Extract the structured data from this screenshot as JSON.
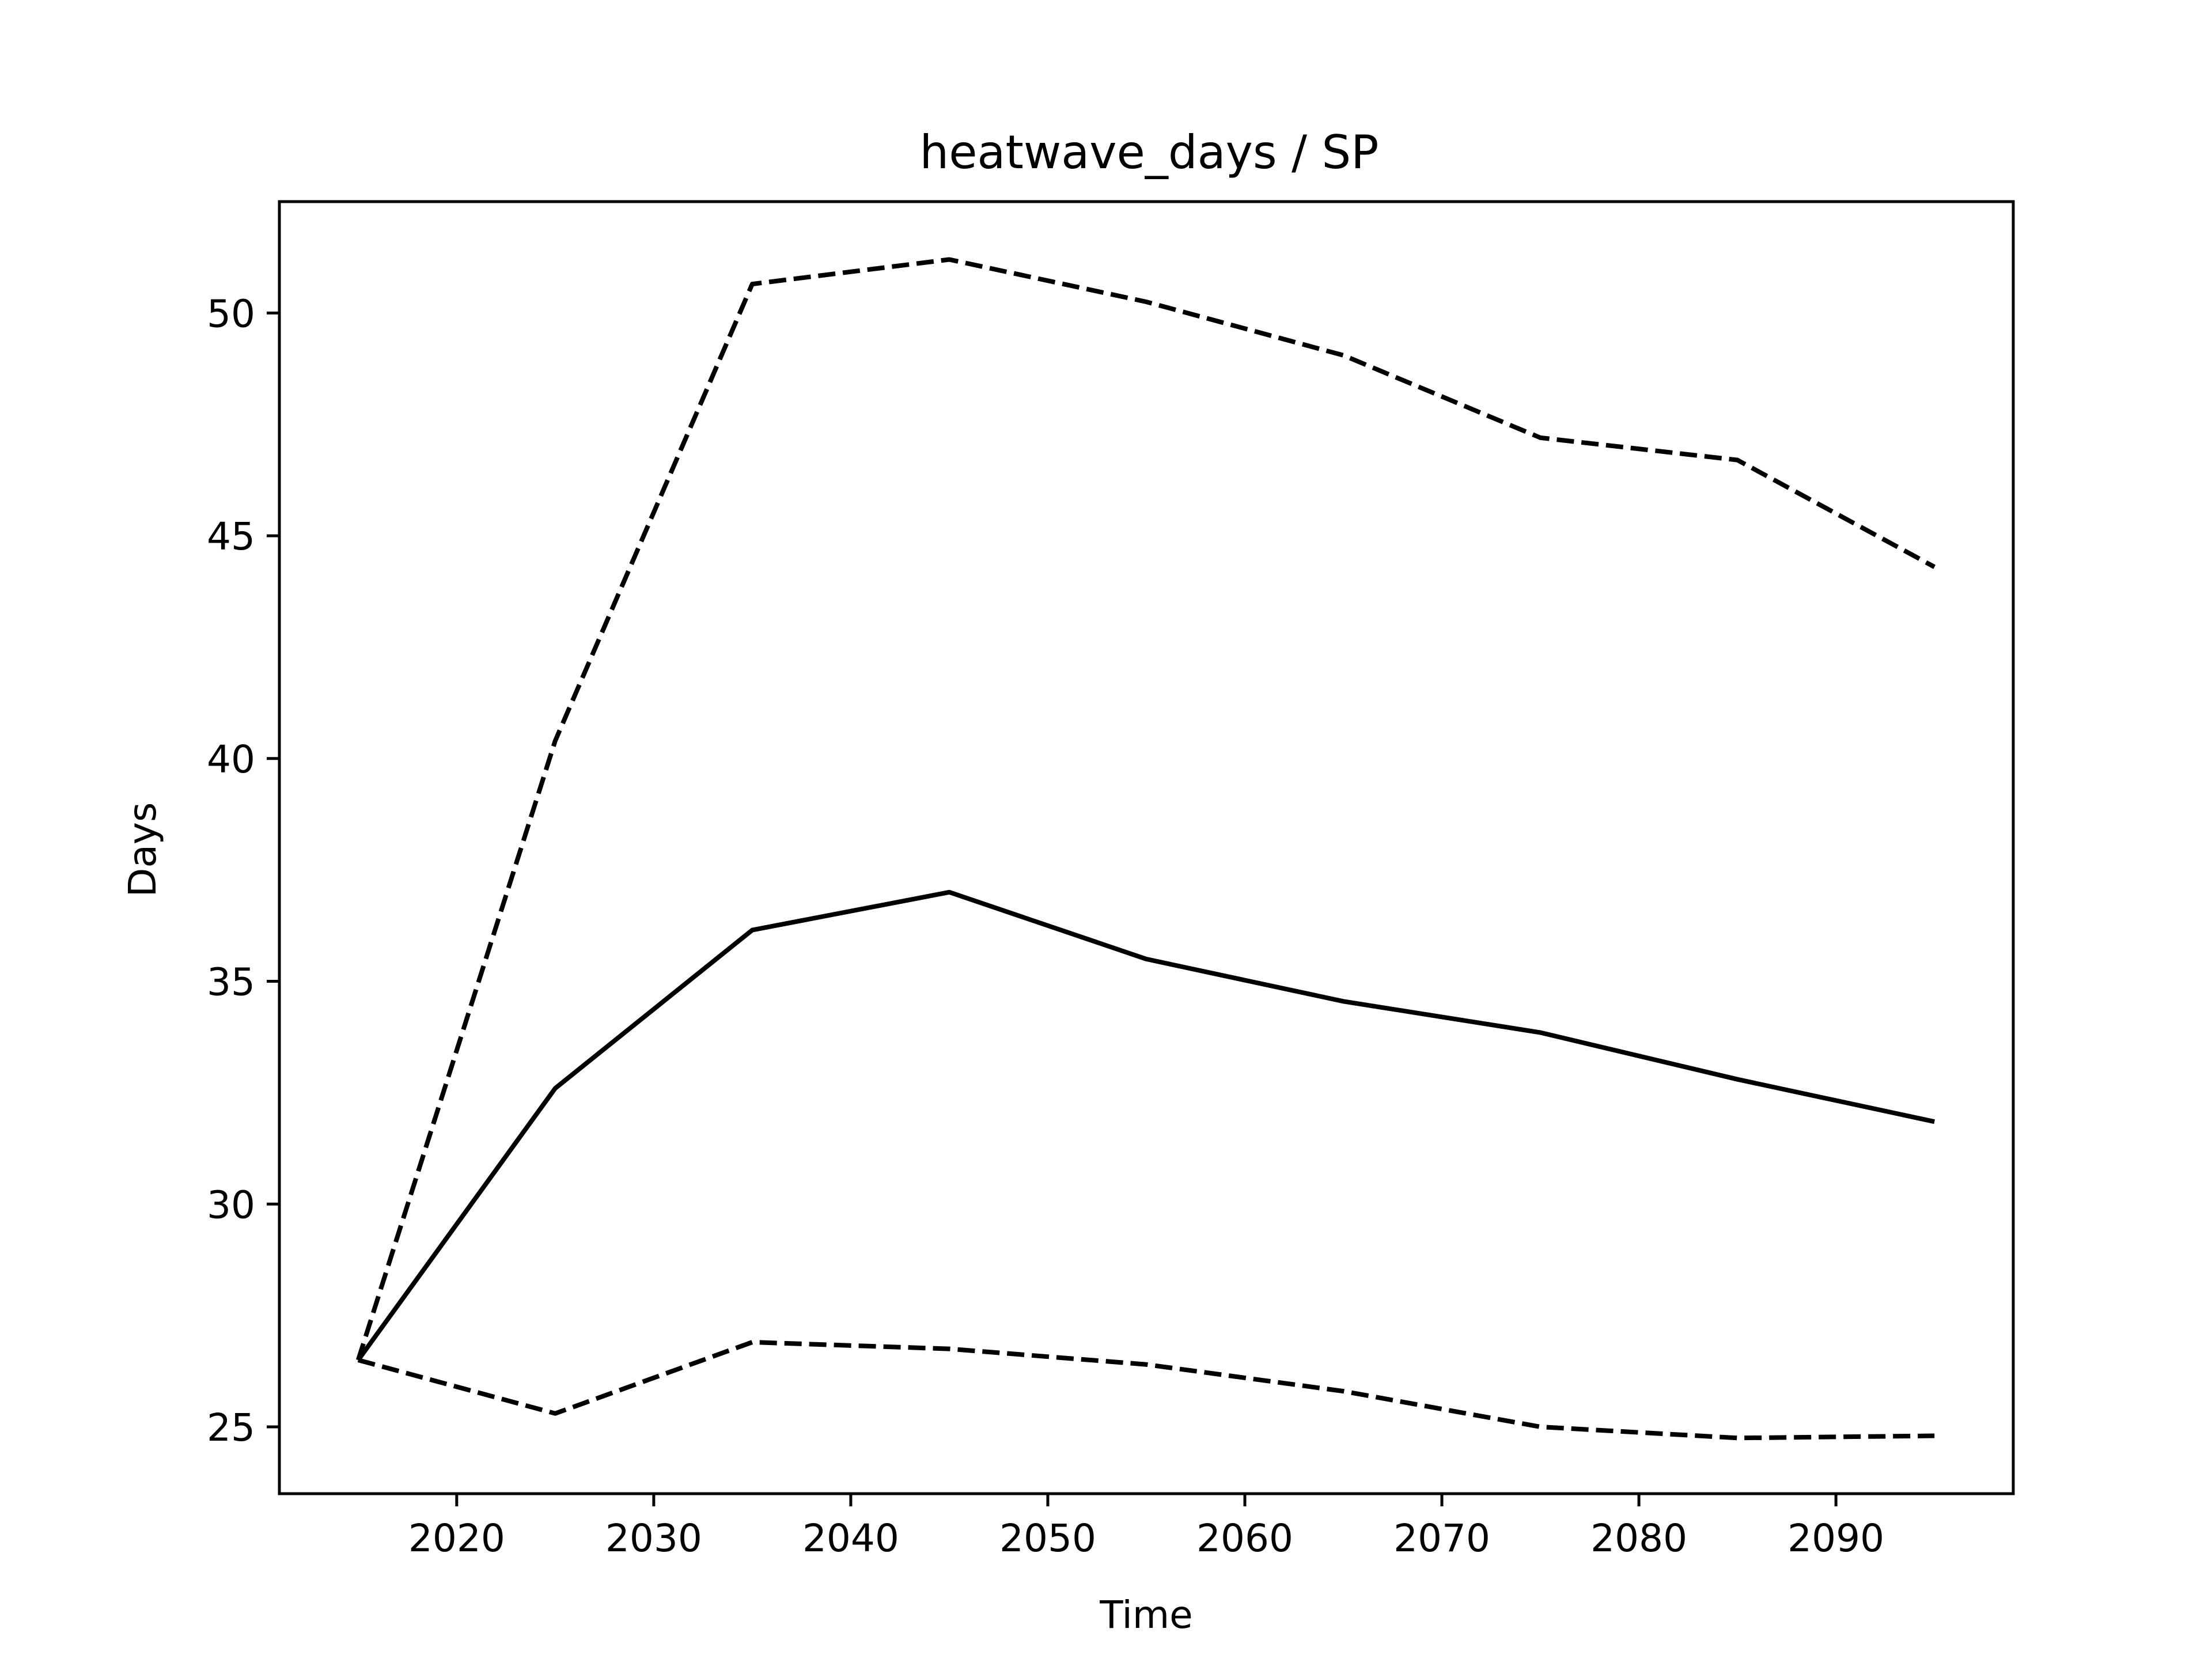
{
  "chart_data": {
    "type": "line",
    "title": "heatwave_days / SP",
    "xlabel": "Time",
    "ylabel": "Days",
    "x": [
      2015,
      2025,
      2035,
      2045,
      2055,
      2065,
      2075,
      2085,
      2095
    ],
    "series": [
      {
        "style": "solid",
        "values": [
          26.5,
          32.6,
          36.15,
          37.0,
          35.5,
          34.55,
          33.85,
          32.8,
          31.85
        ]
      },
      {
        "style": "dashed",
        "values": [
          26.5,
          40.4,
          50.65,
          51.2,
          50.25,
          49.05,
          47.2,
          46.7,
          44.3
        ]
      },
      {
        "style": "dashed",
        "values": [
          26.5,
          25.3,
          26.9,
          26.75,
          26.4,
          25.8,
          25.0,
          24.75,
          24.8
        ]
      }
    ],
    "xticks": [
      2020,
      2030,
      2040,
      2050,
      2060,
      2070,
      2080,
      2090
    ],
    "yticks": [
      25,
      30,
      35,
      40,
      45,
      50
    ],
    "xlim": [
      2011,
      2099
    ],
    "ylim": [
      23.5,
      52.5
    ],
    "grid": false,
    "line_color": "#000000"
  }
}
